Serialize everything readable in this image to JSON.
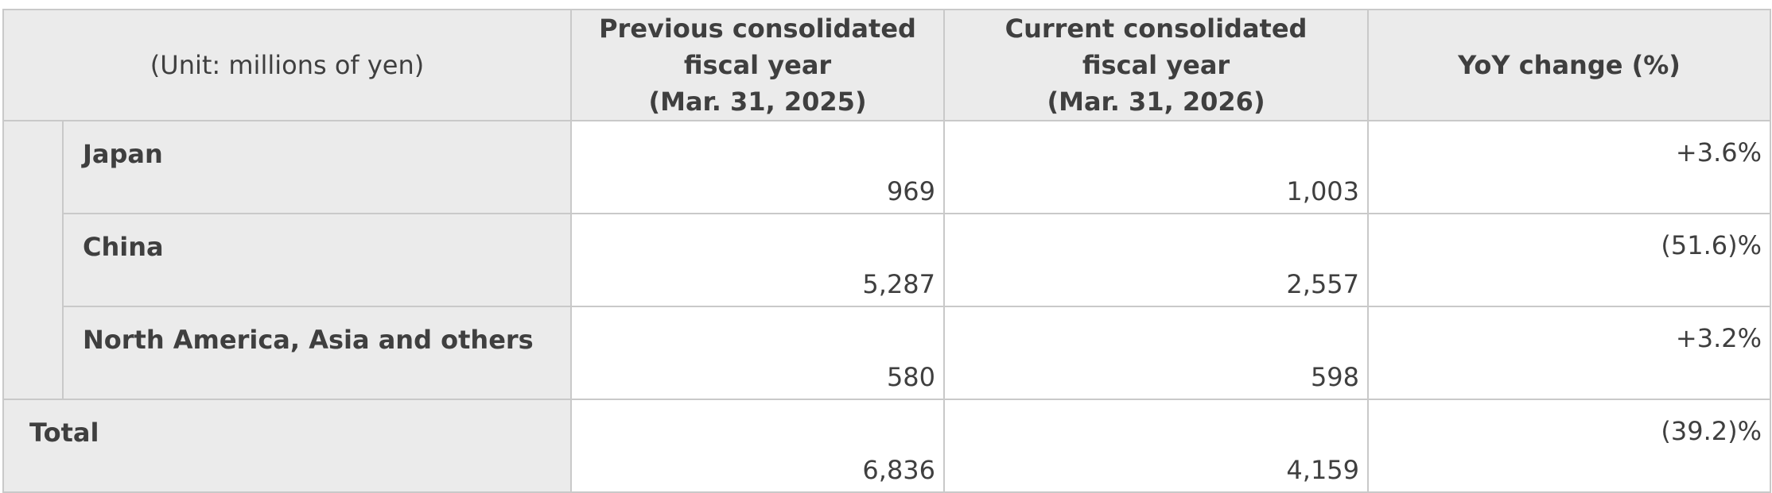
{
  "header": {
    "unit": "(Unit: millions of yen)",
    "columns": [
      [
        "Previous consolidated",
        "fiscal year",
        "(Mar. 31, 2025)"
      ],
      [
        "Current consolidated",
        "fiscal year",
        "(Mar. 31, 2026)"
      ],
      [
        "YoY change (%)"
      ]
    ]
  },
  "table": {
    "rows": [
      [
        "Japan",
        "969",
        "1,003",
        "+3.6%"
      ],
      [
        "China",
        "5,287",
        "2,557",
        "(51.6)%"
      ],
      [
        "North America, Asia and others",
        "580",
        "598",
        "+3.2%"
      ]
    ],
    "total": [
      "Total",
      "6,836",
      "4,159",
      "(39.2)%"
    ]
  }
}
